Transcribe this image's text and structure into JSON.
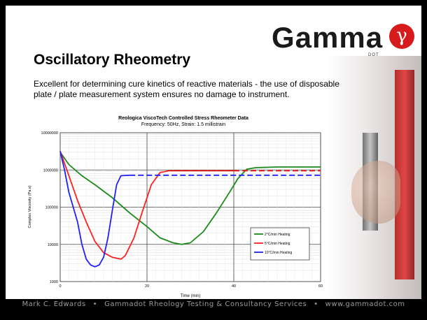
{
  "logo": {
    "text": "Gamma",
    "symbol": "γ",
    "subtext": "DOT"
  },
  "slide": {
    "title": "Oscillatory Rheometry",
    "description": "Excellent for determining cure kinetics of reactive materials - the use of disposable plate / plate measurement system ensures no damage to instrument."
  },
  "footer": {
    "author": "Mark C. Edwards",
    "company": "Gammadot Rheology Testing & Consultancy Services",
    "website": "www.gammadot.com"
  },
  "colors": {
    "green": "#1a8a1a",
    "red": "#ff2020",
    "blue": "#2020ff",
    "logo_red": "#d51b1b"
  },
  "chart_data": {
    "type": "line",
    "title": "Reologica ViscoTech Controlled Stress Rheometer Data",
    "subtitle": "Frequency: 50Hz, Strain: 1.5 millistrain",
    "xlabel": "Time (min)",
    "ylabel": "Complex Viscosity (Pa.s)",
    "xlim": [
      0,
      60
    ],
    "ylim": [
      1000,
      10000000
    ],
    "yscale": "log",
    "xticks": [
      "0",
      "20",
      "40",
      "60"
    ],
    "yticks": [
      "1000",
      "10000",
      "100000",
      "1000000",
      "10000000"
    ],
    "legend_position": "center-right",
    "series": [
      {
        "name": "2°C/min Heating",
        "color": "#1a8a1a",
        "points": [
          [
            0,
            3000000
          ],
          [
            2,
            1400000
          ],
          [
            5,
            700000
          ],
          [
            8,
            400000
          ],
          [
            12,
            180000
          ],
          [
            16,
            70000
          ],
          [
            20,
            30000
          ],
          [
            23,
            15000
          ],
          [
            26,
            11000
          ],
          [
            28,
            10000
          ],
          [
            30,
            11000
          ],
          [
            33,
            22000
          ],
          [
            36,
            70000
          ],
          [
            39,
            250000
          ],
          [
            41,
            600000
          ],
          [
            43,
            1050000
          ],
          [
            45,
            1150000
          ],
          [
            50,
            1200000
          ],
          [
            60,
            1200000
          ]
        ]
      },
      {
        "name": "5°C/min Heating",
        "color": "#ff2020",
        "points": [
          [
            0,
            3200000
          ],
          [
            2,
            700000
          ],
          [
            4,
            150000
          ],
          [
            6,
            40000
          ],
          [
            8,
            12000
          ],
          [
            10,
            6000
          ],
          [
            12,
            4500
          ],
          [
            14,
            4000
          ],
          [
            15,
            5000
          ],
          [
            17,
            15000
          ],
          [
            19,
            80000
          ],
          [
            21,
            400000
          ],
          [
            23,
            850000
          ],
          [
            25,
            950000
          ],
          [
            40,
            950000
          ],
          [
            60,
            950000
          ]
        ],
        "dashed_from": 40
      },
      {
        "name": "10°C/min Heating",
        "color": "#2020ff",
        "points": [
          [
            0,
            3200000
          ],
          [
            1,
            1000000
          ],
          [
            2,
            250000
          ],
          [
            4,
            40000
          ],
          [
            5,
            10000
          ],
          [
            6,
            4000
          ],
          [
            7,
            2800
          ],
          [
            8,
            2500
          ],
          [
            9,
            2800
          ],
          [
            10,
            4500
          ],
          [
            11,
            15000
          ],
          [
            12,
            80000
          ],
          [
            13,
            400000
          ],
          [
            14,
            700000
          ],
          [
            16,
            720000
          ],
          [
            20,
            720000
          ],
          [
            60,
            720000
          ]
        ],
        "dashed_from": 16
      }
    ]
  }
}
